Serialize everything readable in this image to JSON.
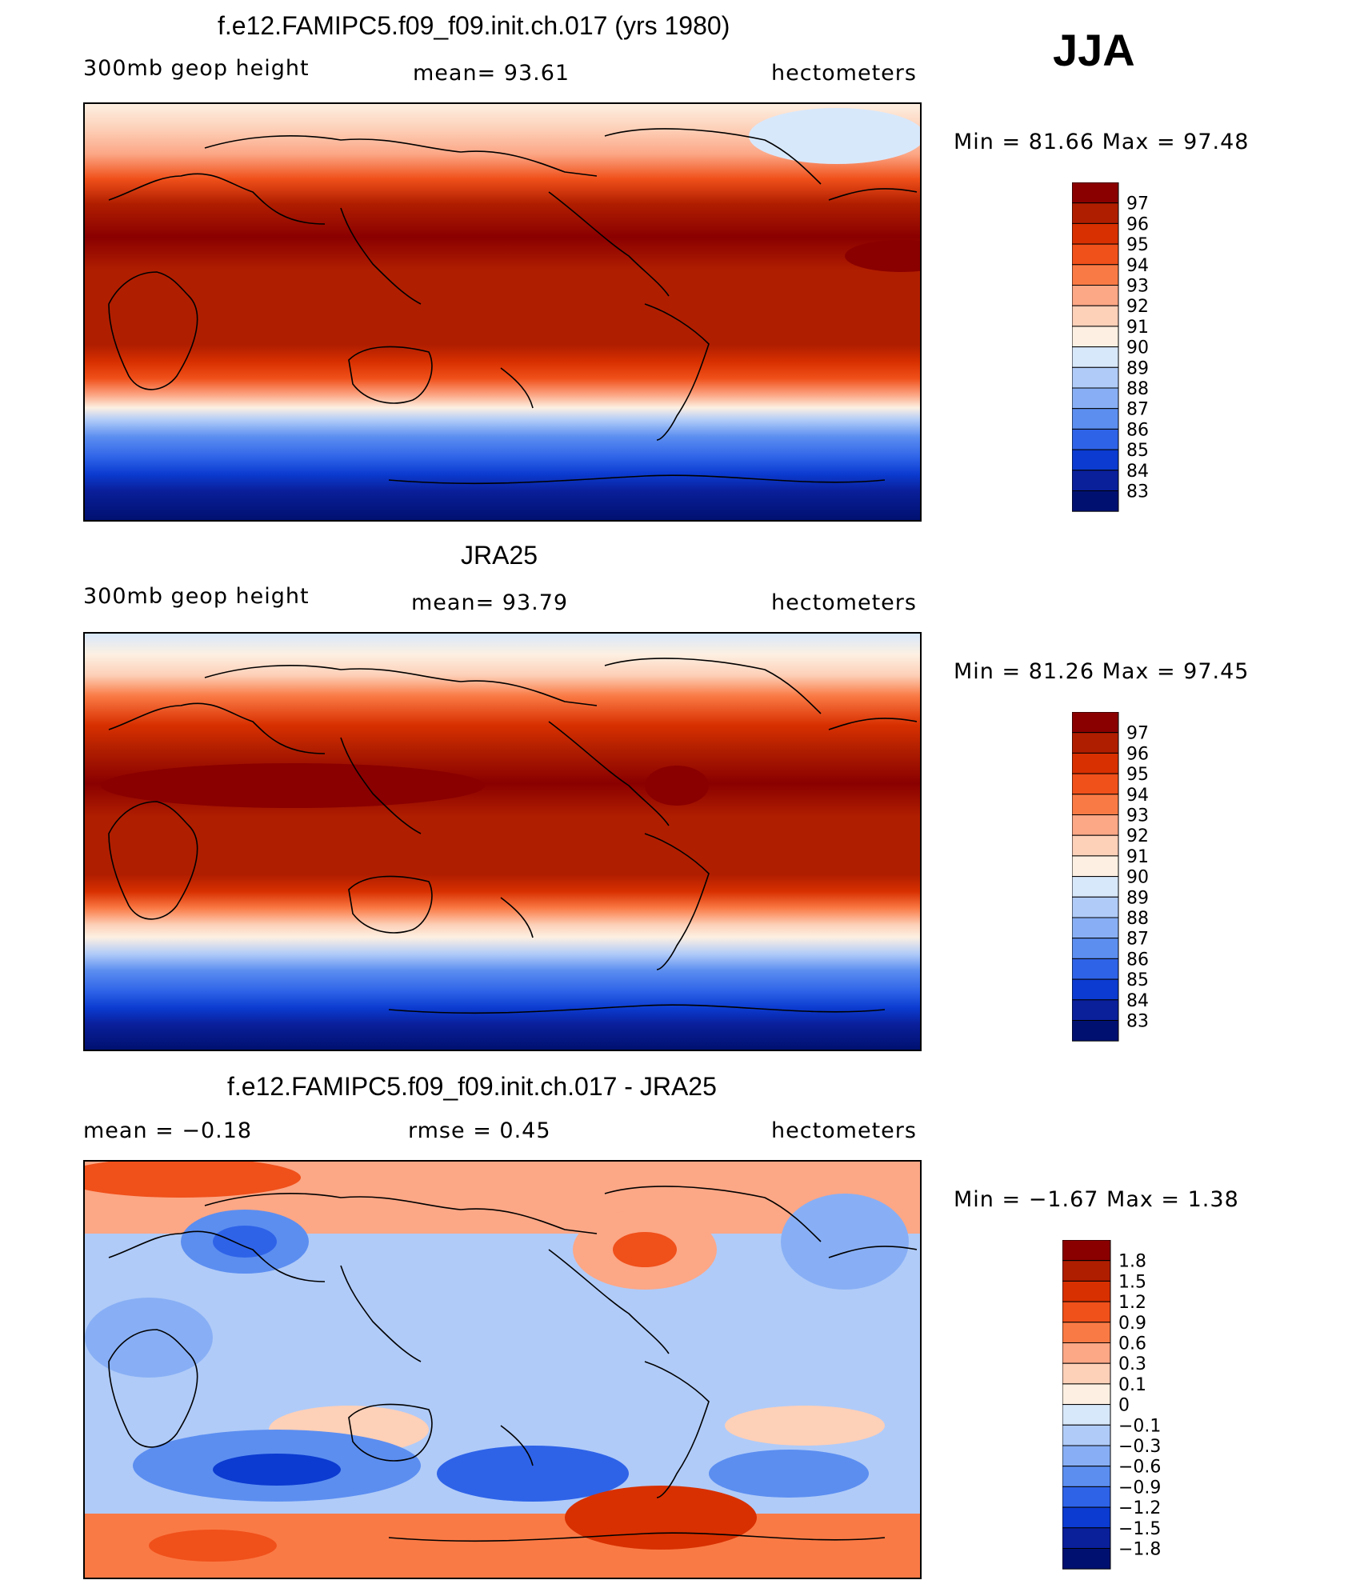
{
  "season": "JJA",
  "panels": [
    {
      "title": "f.e12.FAMIPC5.f09_f09.init.ch.017 (yrs 1980)",
      "left_label": "300mb  geop  height",
      "center_label": "mean=   93.61",
      "right_label": "hectometers",
      "minmax": "Min  =    81.66  Max  =    97.48",
      "colorbar_labels": [
        "97",
        "96",
        "95",
        "94",
        "93",
        "92",
        "91",
        "90",
        "89",
        "88",
        "87",
        "86",
        "85",
        "84",
        "83"
      ],
      "colorbar_colors": [
        "#8a0000",
        "#b01e00",
        "#d83000",
        "#f0501a",
        "#fa7a45",
        "#fca786",
        "#fdd0b8",
        "#fdf0e2",
        "#d8e8fb",
        "#b0cbf8",
        "#88aff5",
        "#5c8ef0",
        "#2e63e8",
        "#0b3bd0",
        "#0a1f9a",
        "#001070"
      ]
    },
    {
      "title": "JRA25",
      "left_label": "300mb  geop  height",
      "center_label": "mean=   93.79",
      "right_label": "hectometers",
      "minmax": "Min  =    81.26  Max  =    97.45",
      "colorbar_labels": [
        "97",
        "96",
        "95",
        "94",
        "93",
        "92",
        "91",
        "90",
        "89",
        "88",
        "87",
        "86",
        "85",
        "84",
        "83"
      ],
      "colorbar_colors": [
        "#8a0000",
        "#b01e00",
        "#d83000",
        "#f0501a",
        "#fa7a45",
        "#fca786",
        "#fdd0b8",
        "#fdf0e2",
        "#d8e8fb",
        "#b0cbf8",
        "#88aff5",
        "#5c8ef0",
        "#2e63e8",
        "#0b3bd0",
        "#0a1f9a",
        "#001070"
      ]
    },
    {
      "title": "f.e12.FAMIPC5.f09_f09.init.ch.017 - JRA25",
      "left_label": "mean  =     −0.18",
      "center_label": "rmse  =     0.45",
      "right_label": "hectometers",
      "minmax": "Min  =    −1.67  Max  =      1.38",
      "colorbar_labels": [
        "1.8",
        "1.5",
        "1.2",
        "0.9",
        "0.6",
        "0.3",
        "0.1",
        "0",
        "−0.1",
        "−0.3",
        "−0.6",
        "−0.9",
        "−1.2",
        "−1.5",
        "−1.8"
      ],
      "colorbar_colors": [
        "#8a0000",
        "#b01e00",
        "#d83000",
        "#f0501a",
        "#fa7a45",
        "#fca786",
        "#fdd0b8",
        "#fdf0e2",
        "#d8e8fb",
        "#b0cbf8",
        "#88aff5",
        "#5c8ef0",
        "#2e63e8",
        "#0b3bd0",
        "#0a1f9a",
        "#001070"
      ]
    }
  ],
  "colors": {
    "outline": "#000000"
  }
}
